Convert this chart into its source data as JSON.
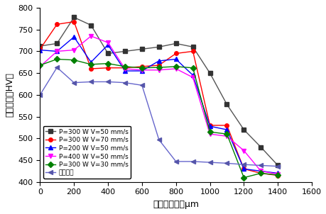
{
  "series": [
    {
      "label": "P=300 W V=50 mm/s",
      "color": "#555555",
      "marker": "s",
      "markercolor": "#333333",
      "x": [
        0,
        100,
        200,
        300,
        400,
        500,
        600,
        700,
        800,
        900,
        1000,
        1100,
        1200,
        1300,
        1400
      ],
      "y": [
        712,
        718,
        778,
        760,
        695,
        700,
        705,
        710,
        718,
        710,
        650,
        578,
        520,
        480,
        438
      ]
    },
    {
      "label": "P=300 W V=70 mm/s",
      "color": "#ff0000",
      "marker": "o",
      "markercolor": "#ff0000",
      "x": [
        0,
        100,
        200,
        300,
        400,
        500,
        600,
        700,
        800,
        900,
        1000,
        1100,
        1200,
        1300,
        1400
      ],
      "y": [
        705,
        762,
        768,
        660,
        662,
        662,
        665,
        668,
        695,
        700,
        530,
        530,
        430,
        420,
        415
      ]
    },
    {
      "label": "P=200 W V=50 mm/s",
      "color": "#0000ff",
      "marker": "^",
      "markercolor": "#0000ff",
      "x": [
        0,
        100,
        200,
        300,
        400,
        500,
        600,
        700,
        800,
        900,
        1000,
        1100,
        1200,
        1300,
        1400
      ],
      "y": [
        703,
        700,
        733,
        675,
        715,
        655,
        655,
        678,
        682,
        645,
        528,
        520,
        430,
        425,
        420
      ]
    },
    {
      "label": "P=400 W V=50 mm/s",
      "color": "#ff00ff",
      "marker": "v",
      "markercolor": "#ff00ff",
      "x": [
        0,
        100,
        200,
        300,
        400,
        500,
        600,
        700,
        800,
        900,
        1000,
        1100,
        1200,
        1300,
        1400
      ],
      "y": [
        665,
        700,
        703,
        735,
        720,
        660,
        657,
        657,
        660,
        640,
        510,
        505,
        472,
        425,
        418
      ]
    },
    {
      "label": "P=300 W V=30 mm/s",
      "color": "#008000",
      "marker": "D",
      "markercolor": "#008000",
      "x": [
        0,
        100,
        200,
        300,
        400,
        500,
        600,
        700,
        800,
        900,
        1000,
        1100,
        1200,
        1300,
        1400
      ],
      "y": [
        668,
        682,
        680,
        670,
        672,
        665,
        662,
        663,
        665,
        662,
        515,
        510,
        410,
        420,
        416
      ]
    },
    {
      "label": "未经处理",
      "color": "#6666cc",
      "marker": "<",
      "markercolor": "#5555aa",
      "x": [
        0,
        100,
        200,
        300,
        400,
        500,
        600,
        700,
        800,
        900,
        1000,
        1100,
        1200,
        1300,
        1400
      ],
      "y": [
        600,
        663,
        628,
        630,
        630,
        628,
        622,
        497,
        447,
        447,
        445,
        443,
        440,
        438,
        436
      ]
    }
  ],
  "xlim": [
    0,
    1600
  ],
  "ylim": [
    400,
    800
  ],
  "xticks": [
    0,
    200,
    400,
    600,
    800,
    1000,
    1200,
    1400,
    1600
  ],
  "yticks": [
    400,
    450,
    500,
    550,
    600,
    650,
    700,
    750,
    800
  ],
  "xlabel": "距表面距离／μm",
  "ylabel": "显微硬度（HV）",
  "legend_loc": "lower left",
  "figsize": [
    4.6,
    3.02
  ],
  "dpi": 100
}
